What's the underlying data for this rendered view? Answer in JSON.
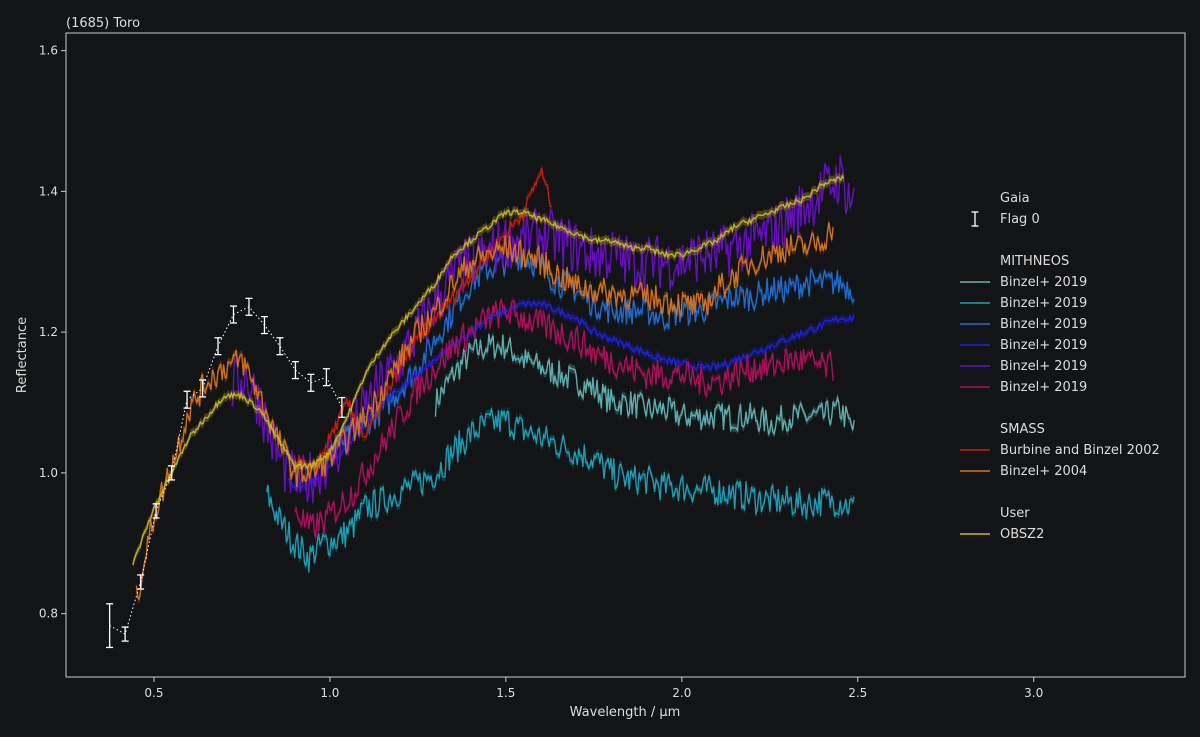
{
  "chart_data": {
    "type": "line",
    "title": "(1685) Toro",
    "xlabel": "Wavelength / µm",
    "ylabel": "Reflectance",
    "xlim": [
      0.25,
      3.43
    ],
    "ylim": [
      0.71,
      1.625
    ],
    "xticks": [
      0.5,
      1.0,
      1.5,
      2.0,
      2.5,
      3.0
    ],
    "xtick_labels": [
      "0.5",
      "1.0",
      "1.5",
      "2.0",
      "2.5",
      "3.0"
    ],
    "yticks": [
      0.8,
      1.0,
      1.2,
      1.4,
      1.6
    ],
    "ytick_labels": [
      "0.8",
      "1.0",
      "1.2",
      "1.4",
      "1.6"
    ],
    "grid": false,
    "legend_position": "right",
    "colors": {
      "background": "#131416",
      "frame": "#cccccc",
      "text": "#dddddd"
    },
    "legend_groups": [
      {
        "title": "Gaia",
        "entries": [
          {
            "label": "Flag 0",
            "color": "#ffffff",
            "marker": "errorbar"
          }
        ]
      },
      {
        "title": "MITHNEOS",
        "entries": [
          {
            "label": "Binzel+ 2019",
            "color": "#5fb3b3"
          },
          {
            "label": "Binzel+ 2019",
            "color": "#1ea1b8"
          },
          {
            "label": "Binzel+ 2019",
            "color": "#1f6fd6"
          },
          {
            "label": "Binzel+ 2019",
            "color": "#1f22e0"
          },
          {
            "label": "Binzel+ 2019",
            "color": "#6a0fc7"
          },
          {
            "label": "Binzel+ 2019",
            "color": "#b0105e"
          }
        ]
      },
      {
        "title": "SMASS",
        "entries": [
          {
            "label": "Burbine and Binzel 2002",
            "color": "#c81e0f"
          },
          {
            "label": "Binzel+ 2004",
            "color": "#d9741a"
          }
        ]
      },
      {
        "title": "User",
        "entries": [
          {
            "label": "OBSZ2",
            "color": "#c8b72a"
          }
        ]
      }
    ],
    "gaia": {
      "x": [
        0.374,
        0.418,
        0.462,
        0.506,
        0.55,
        0.594,
        0.638,
        0.682,
        0.726,
        0.77,
        0.814,
        0.858,
        0.902,
        0.946,
        0.99,
        1.034
      ],
      "y": [
        0.783,
        0.771,
        0.845,
        0.946,
        1.0,
        1.104,
        1.12,
        1.18,
        1.225,
        1.236,
        1.21,
        1.18,
        1.146,
        1.128,
        1.136,
        1.093
      ],
      "err": [
        0.031,
        0.01,
        0.01,
        0.01,
        0.01,
        0.012,
        0.012,
        0.012,
        0.012,
        0.012,
        0.012,
        0.012,
        0.012,
        0.012,
        0.012,
        0.014
      ]
    },
    "series": [
      {
        "name": "Binzel+ 2019",
        "group": "MITHNEOS",
        "color": "#5fb3b3",
        "noise": 0.02,
        "x": [
          1.3,
          1.35,
          1.4,
          1.45,
          1.5,
          1.55,
          1.6,
          1.65,
          1.7,
          1.75,
          1.8,
          1.85,
          1.9,
          1.95,
          2.0,
          2.05,
          2.1,
          2.15,
          2.2,
          2.25,
          2.3,
          2.35,
          2.4,
          2.45,
          2.49
        ],
        "y": [
          1.1,
          1.14,
          1.17,
          1.18,
          1.18,
          1.16,
          1.15,
          1.14,
          1.13,
          1.12,
          1.1,
          1.1,
          1.09,
          1.09,
          1.08,
          1.08,
          1.08,
          1.08,
          1.08,
          1.07,
          1.08,
          1.08,
          1.08,
          1.09,
          1.06
        ]
      },
      {
        "name": "Binzel+ 2019",
        "group": "MITHNEOS",
        "color": "#1ea1b8",
        "noise": 0.022,
        "x": [
          0.82,
          0.86,
          0.9,
          0.94,
          0.98,
          1.02,
          1.06,
          1.1,
          1.15,
          1.2,
          1.25,
          1.3,
          1.35,
          1.4,
          1.45,
          1.5,
          1.55,
          1.6,
          1.65,
          1.7,
          1.75,
          1.8,
          1.85,
          1.9,
          1.95,
          2.0,
          2.05,
          2.1,
          2.15,
          2.2,
          2.25,
          2.3,
          2.35,
          2.4,
          2.45,
          2.49
        ],
        "y": [
          0.97,
          0.93,
          0.9,
          0.88,
          0.9,
          0.905,
          0.92,
          0.95,
          0.96,
          0.975,
          0.985,
          1.0,
          1.03,
          1.055,
          1.07,
          1.075,
          1.06,
          1.05,
          1.04,
          1.03,
          1.02,
          1.0,
          0.99,
          0.99,
          0.98,
          0.98,
          0.975,
          0.975,
          0.97,
          0.965,
          0.96,
          0.96,
          0.955,
          0.96,
          0.96,
          0.95
        ]
      },
      {
        "name": "Binzel+ 2019",
        "group": "MITHNEOS",
        "color": "#1f6fd6",
        "noise": 0.02,
        "x": [
          1.0,
          1.05,
          1.1,
          1.15,
          1.2,
          1.25,
          1.3,
          1.35,
          1.4,
          1.45,
          1.5,
          1.55,
          1.6,
          1.65,
          1.7,
          1.75,
          1.8,
          1.85,
          1.9,
          1.95,
          2.0,
          2.05,
          2.1,
          2.15,
          2.2,
          2.25,
          2.3,
          2.35,
          2.4,
          2.45,
          2.49
        ],
        "y": [
          1.03,
          1.05,
          1.07,
          1.09,
          1.12,
          1.15,
          1.19,
          1.23,
          1.27,
          1.29,
          1.3,
          1.31,
          1.29,
          1.27,
          1.26,
          1.24,
          1.23,
          1.23,
          1.23,
          1.22,
          1.23,
          1.23,
          1.24,
          1.25,
          1.25,
          1.26,
          1.26,
          1.27,
          1.27,
          1.27,
          1.26
        ]
      },
      {
        "name": "Binzel+ 2019",
        "group": "MITHNEOS",
        "color": "#1f22e0",
        "noise": 0.005,
        "x": [
          0.88,
          0.92,
          0.96,
          1.0,
          1.05,
          1.1,
          1.15,
          1.2,
          1.25,
          1.3,
          1.35,
          1.4,
          1.45,
          1.5,
          1.55,
          1.6,
          1.65,
          1.7,
          1.75,
          1.8,
          1.85,
          1.9,
          1.95,
          2.0,
          2.05,
          2.1,
          2.15,
          2.2,
          2.25,
          2.3,
          2.35,
          2.4,
          2.45,
          2.49
        ],
        "y": [
          0.99,
          0.975,
          0.99,
          1.01,
          1.04,
          1.07,
          1.1,
          1.12,
          1.14,
          1.16,
          1.18,
          1.2,
          1.22,
          1.23,
          1.24,
          1.24,
          1.23,
          1.22,
          1.2,
          1.19,
          1.18,
          1.17,
          1.16,
          1.155,
          1.15,
          1.15,
          1.16,
          1.17,
          1.18,
          1.19,
          1.2,
          1.21,
          1.22,
          1.22
        ]
      },
      {
        "name": "Binzel+ 2019",
        "group": "MITHNEOS",
        "color": "#6a0fc7",
        "noise": 0.04,
        "x": [
          0.72,
          0.76,
          0.8,
          0.84,
          0.88,
          0.92,
          0.96,
          1.0,
          1.05,
          1.1,
          1.15,
          1.2,
          1.25,
          1.3,
          1.35,
          1.4,
          1.45,
          1.5,
          1.55,
          1.6,
          1.65,
          1.7,
          1.75,
          1.8,
          1.85,
          1.9,
          1.95,
          2.0,
          2.05,
          2.1,
          2.15,
          2.2,
          2.25,
          2.3,
          2.35,
          2.4,
          2.45,
          2.49
        ],
        "y": [
          1.12,
          1.14,
          1.1,
          1.04,
          1.0,
          0.985,
          1.0,
          1.02,
          1.05,
          1.09,
          1.13,
          1.16,
          1.2,
          1.24,
          1.28,
          1.3,
          1.31,
          1.33,
          1.33,
          1.34,
          1.33,
          1.32,
          1.31,
          1.31,
          1.3,
          1.3,
          1.3,
          1.3,
          1.31,
          1.31,
          1.32,
          1.33,
          1.34,
          1.36,
          1.38,
          1.4,
          1.42,
          1.38
        ]
      },
      {
        "name": "Binzel+ 2019",
        "group": "MITHNEOS",
        "color": "#b0105e",
        "noise": 0.022,
        "x": [
          0.9,
          0.94,
          0.98,
          1.02,
          1.06,
          1.1,
          1.15,
          1.2,
          1.25,
          1.3,
          1.35,
          1.4,
          1.45,
          1.5,
          1.55,
          1.6,
          1.65,
          1.7,
          1.75,
          1.8,
          1.85,
          1.9,
          1.95,
          2.0,
          2.05,
          2.1,
          2.15,
          2.2,
          2.25,
          2.3,
          2.35,
          2.4,
          2.43
        ],
        "y": [
          0.95,
          0.92,
          0.93,
          0.95,
          0.97,
          1.0,
          1.04,
          1.08,
          1.12,
          1.15,
          1.18,
          1.2,
          1.22,
          1.23,
          1.22,
          1.21,
          1.2,
          1.19,
          1.17,
          1.16,
          1.15,
          1.14,
          1.14,
          1.14,
          1.13,
          1.13,
          1.14,
          1.15,
          1.15,
          1.16,
          1.16,
          1.15,
          1.15
        ]
      },
      {
        "name": "Burbine and Binzel 2002",
        "group": "SMASS",
        "color": "#c81e0f",
        "noise": 0.01,
        "x": [
          0.9,
          0.95,
          1.0,
          1.05,
          1.1,
          1.15,
          1.2,
          1.25,
          1.3,
          1.35,
          1.4,
          1.45,
          1.5,
          1.55,
          1.6,
          1.63
        ],
        "y": [
          1.02,
          1.0,
          1.05,
          1.1,
          1.05,
          1.1,
          1.15,
          1.19,
          1.22,
          1.25,
          1.28,
          1.31,
          1.34,
          1.37,
          1.43,
          1.38
        ]
      },
      {
        "name": "Binzel+ 2004",
        "group": "SMASS",
        "color": "#d9741a",
        "noise": 0.02,
        "x": [
          0.45,
          0.5,
          0.55,
          0.6,
          0.65,
          0.7,
          0.75,
          0.8,
          0.85,
          0.9,
          0.95,
          1.0,
          1.05,
          1.1,
          1.15,
          1.2,
          1.25,
          1.3,
          1.35,
          1.4,
          1.45,
          1.5,
          1.55,
          1.6,
          1.65,
          1.7,
          1.8,
          1.9,
          2.0,
          2.06,
          2.1,
          2.15,
          2.2,
          2.25,
          2.3,
          2.35,
          2.4,
          2.43
        ],
        "y": [
          0.82,
          0.94,
          1.01,
          1.09,
          1.13,
          1.15,
          1.16,
          1.11,
          1.05,
          1.0,
          1.0,
          1.02,
          1.05,
          1.08,
          1.12,
          1.16,
          1.2,
          1.23,
          1.27,
          1.3,
          1.31,
          1.32,
          1.31,
          1.3,
          1.28,
          1.265,
          1.255,
          1.25,
          1.24,
          1.235,
          1.26,
          1.28,
          1.3,
          1.31,
          1.32,
          1.32,
          1.33,
          1.35
        ]
      },
      {
        "name": "OBSZ2",
        "group": "User",
        "color": "#c8b72a",
        "noise": 0.004,
        "x": [
          0.44,
          0.5,
          0.55,
          0.6,
          0.65,
          0.7,
          0.75,
          0.8,
          0.85,
          0.9,
          0.95,
          1.0,
          1.05,
          1.1,
          1.15,
          1.2,
          1.25,
          1.3,
          1.35,
          1.4,
          1.45,
          1.5,
          1.55,
          1.6,
          1.65,
          1.7,
          1.75,
          1.8,
          1.85,
          1.9,
          1.95,
          2.0,
          2.05,
          2.1,
          2.15,
          2.2,
          2.25,
          2.3,
          2.35,
          2.4,
          2.46
        ],
        "y": [
          0.87,
          0.95,
          1.0,
          1.05,
          1.08,
          1.11,
          1.11,
          1.09,
          1.05,
          1.01,
          1.01,
          1.03,
          1.08,
          1.14,
          1.18,
          1.21,
          1.24,
          1.27,
          1.31,
          1.33,
          1.35,
          1.37,
          1.37,
          1.36,
          1.35,
          1.34,
          1.33,
          1.33,
          1.32,
          1.32,
          1.31,
          1.31,
          1.32,
          1.33,
          1.35,
          1.36,
          1.37,
          1.38,
          1.39,
          1.41,
          1.42
        ]
      }
    ]
  }
}
